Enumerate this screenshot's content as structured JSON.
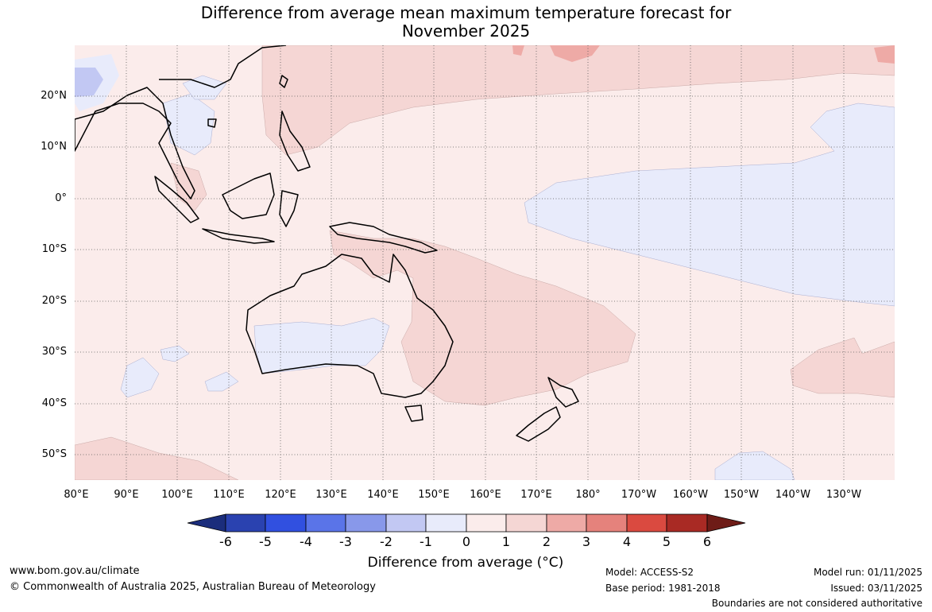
{
  "title_lines": [
    "Difference from average mean maximum temperature forecast for",
    "November 2025"
  ],
  "map": {
    "lat_labels": [
      "20°N",
      "10°N",
      "0°",
      "10°S",
      "20°S",
      "30°S",
      "40°S",
      "50°S"
    ],
    "lon_labels": [
      "80°E",
      "90°E",
      "100°E",
      "110°E",
      "120°E",
      "130°E",
      "140°E",
      "150°E",
      "160°E",
      "170°E",
      "180°",
      "170°W",
      "160°W",
      "150°W",
      "140°W",
      "130°W"
    ],
    "region_colors": {
      "ocean_base": "#fbeceb",
      "warm_0_1": "#fbeceb",
      "warm_1_2": "#f5d6d4",
      "warm_2_3": "#eeaaa6",
      "cool_0_1": "#e8ebfb",
      "cool_1_2": "#c2c8f3",
      "coast": "#000000",
      "grid": "#555555"
    }
  },
  "colorbar": {
    "ticks": [
      "-6",
      "-5",
      "-4",
      "-3",
      "-2",
      "-1",
      "0",
      "1",
      "2",
      "3",
      "4",
      "5",
      "6"
    ],
    "colors": [
      "#1b2d7c",
      "#2a42b0",
      "#3150e0",
      "#5a74e8",
      "#8898ea",
      "#c2c8f3",
      "#e8ebfb",
      "#fbeceb",
      "#f5d6d4",
      "#eeaaa6",
      "#e5827c",
      "#da4a40",
      "#a92a24",
      "#6e1c17"
    ],
    "title": "Difference from average (°C)"
  },
  "footer": {
    "website": "www.bom.gov.au/climate",
    "copyright": "© Commonwealth of Australia 2025, Australian Bureau of Meteorology",
    "model": "Model: ACCESS-S2",
    "base_period": "Base period: 1981-2018",
    "model_run": "Model run: 01/11/2025",
    "issued": "Issued: 03/11/2025",
    "disclaimer": "Boundaries are not considered authoritative"
  }
}
